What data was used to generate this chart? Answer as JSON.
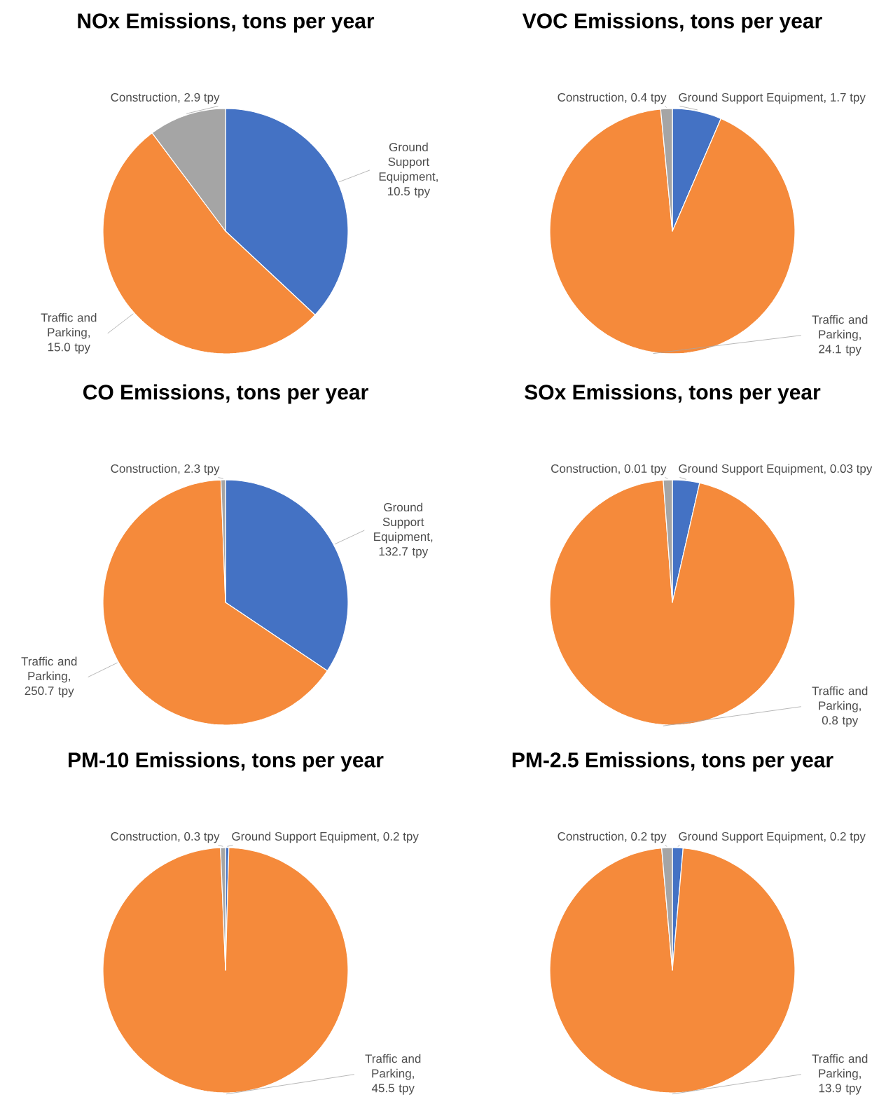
{
  "chart_data": [
    {
      "type": "pie",
      "title": "NOx Emissions, tons per year",
      "categories": [
        "Ground Support Equipment",
        "Traffic and Parking",
        "Construction"
      ],
      "values": [
        10.5,
        15.0,
        2.9
      ],
      "value_labels": [
        ", 10.5 tpy",
        ", 15.0 tpy",
        ", 2.9 tpy"
      ],
      "colors": [
        "#4472c4",
        "#f58a3b",
        "#a5a5a5"
      ]
    },
    {
      "type": "pie",
      "title": "VOC Emissions, tons per year",
      "categories": [
        "Ground Support Equipment",
        "Traffic and Parking",
        "Construction"
      ],
      "values": [
        1.7,
        24.1,
        0.4
      ],
      "value_labels": [
        ", 1.7 tpy",
        ", 24.1 tpy",
        ", 0.4 tpy"
      ],
      "colors": [
        "#4472c4",
        "#f58a3b",
        "#a5a5a5"
      ]
    },
    {
      "type": "pie",
      "title": "CO Emissions, tons per year",
      "categories": [
        "Ground Support Equipment",
        "Traffic and Parking",
        "Construction"
      ],
      "values": [
        132.7,
        250.7,
        2.3
      ],
      "value_labels": [
        ", 132.7 tpy",
        ", 250.7 tpy",
        ", 2.3 tpy"
      ],
      "colors": [
        "#4472c4",
        "#f58a3b",
        "#a5a5a5"
      ]
    },
    {
      "type": "pie",
      "title": "SOx Emissions, tons per year",
      "categories": [
        "Ground Support Equipment",
        "Traffic and Parking",
        "Construction"
      ],
      "values": [
        0.03,
        0.8,
        0.01
      ],
      "value_labels": [
        ", 0.03 tpy",
        ", 0.8 tpy",
        ", 0.01 tpy"
      ],
      "colors": [
        "#4472c4",
        "#f58a3b",
        "#a5a5a5"
      ]
    },
    {
      "type": "pie",
      "title": "PM-10 Emissions, tons per year",
      "categories": [
        "Ground Support Equipment",
        "Traffic and Parking",
        "Construction"
      ],
      "values": [
        0.2,
        45.5,
        0.3
      ],
      "value_labels": [
        ", 0.2 tpy",
        ", 45.5 tpy",
        ", 0.3 tpy"
      ],
      "colors": [
        "#4472c4",
        "#f58a3b",
        "#a5a5a5"
      ]
    },
    {
      "type": "pie",
      "title": "PM-2.5 Emissions, tons per year",
      "categories": [
        "Ground Support Equipment",
        "Traffic and Parking",
        "Construction"
      ],
      "values": [
        0.2,
        13.9,
        0.2
      ],
      "value_labels": [
        ", 0.2 tpy",
        ", 13.9 tpy",
        ", 0.2 tpy"
      ],
      "colors": [
        "#4472c4",
        "#f58a3b",
        "#a5a5a5"
      ]
    }
  ]
}
